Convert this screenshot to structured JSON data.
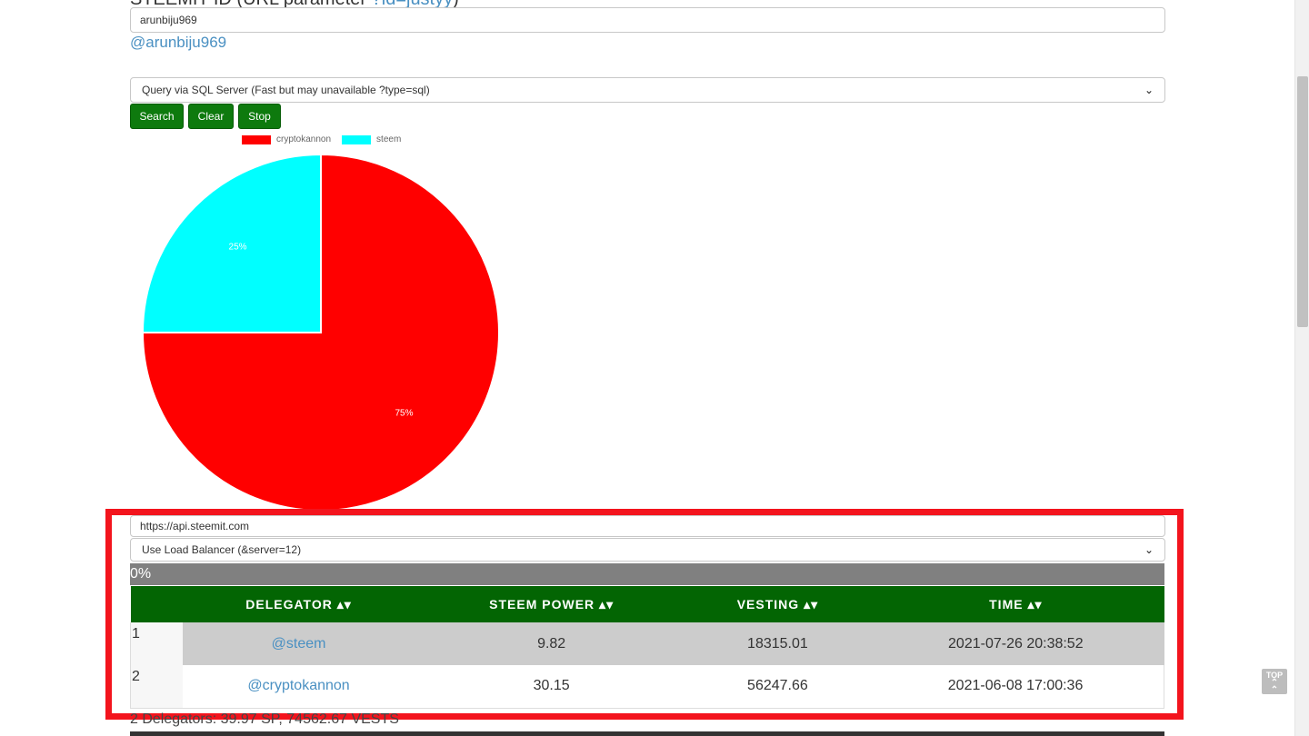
{
  "header": {
    "prefix": "STEEMIT ID (URL parameter ",
    "param_link": "?id=justyy",
    "suffix": ")"
  },
  "id_input": {
    "value": "arunbiju969"
  },
  "user_link": "@arunbiju969",
  "query_select": {
    "selected": "Query via SQL Server (Fast but may unavailable ?type=sql)"
  },
  "buttons": {
    "search": "Search",
    "clear": "Clear",
    "stop": "Stop"
  },
  "chart_data": {
    "type": "pie",
    "labels": [
      "cryptokannon",
      "steem"
    ],
    "values": [
      75,
      25
    ],
    "value_labels": [
      "75%",
      "25%"
    ],
    "colors": [
      "#ff0000",
      "#00ffff"
    ],
    "legend": "top"
  },
  "api_input": {
    "value": "https://api.steemit.com"
  },
  "server_select": {
    "selected": "Use Load Balancer (&server=12)"
  },
  "progress": {
    "label": "0%",
    "value": 0
  },
  "table": {
    "headers": [
      "DELEGATOR ▴▾",
      "STEEM POWER ▴▾",
      "VESTING ▴▾",
      "TIME ▴▾"
    ],
    "rows": [
      {
        "index": "1",
        "delegator": "@steem",
        "sp": "9.82",
        "vesting": "18315.01",
        "time": "2021-07-26 20:38:52"
      },
      {
        "index": "2",
        "delegator": "@cryptokannon",
        "sp": "30.15",
        "vesting": "56247.66",
        "time": "2021-06-08 17:00:36"
      }
    ]
  },
  "summary": "2 Delegators: 39.97 SP, 74562.67 VESTS",
  "top_button": "TOP"
}
